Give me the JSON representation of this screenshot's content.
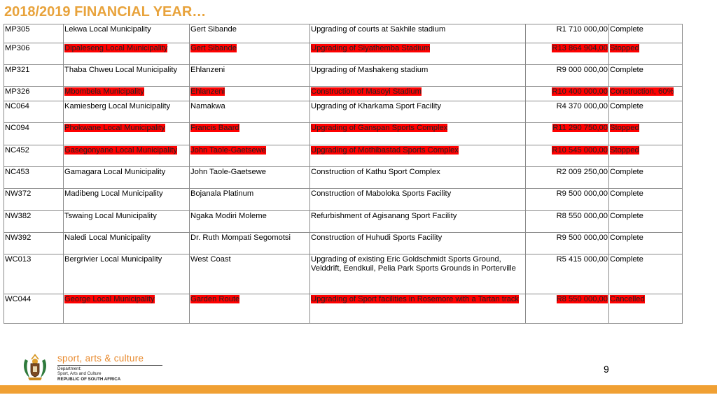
{
  "header": {
    "title": "2018/2019 FINANCIAL YEAR…"
  },
  "table": {
    "rows": [
      {
        "code": "MP305",
        "municipality": "Lekwa Local Municipality",
        "district": "Gert Sibande",
        "project": "Upgrading of courts at Sakhile stadium",
        "amount": "R1 710 000,00",
        "status": "Complete",
        "highlight": false
      },
      {
        "code": "MP306",
        "municipality": "Dipaleseng Local Municipality",
        "district": "Gert Sibande",
        "project": "Upgrading of Siyathemba Stadium",
        "amount": "R13 864 904,00",
        "status": "Stopped",
        "highlight": true
      },
      {
        "code": "MP321",
        "municipality": "Thaba Chweu Local Municipality",
        "district": "Ehlanzeni",
        "project": "Upgrading of Mashakeng stadium",
        "amount": "R9 000 000,00",
        "status": " Complete",
        "highlight": false
      },
      {
        "code": "MP326",
        "municipality": "Mbombela Municipality",
        "district": "Ehlanzeni",
        "project": "Construction of Masoyi Stadium",
        "amount": "R10 400 000,00",
        "status": "Construction, 60%",
        "highlight": true
      },
      {
        "code": "NC064",
        "municipality": "Kamiesberg Local Municipality",
        "district": "Namakwa",
        "project": "Upgrading of Kharkama Sport Facility",
        "amount": "R4 370 000,00",
        "status": "Complete",
        "highlight": false
      },
      {
        "code": "NC094",
        "municipality": "Phokwane Local Municipality",
        "district": "Francis Baard",
        "project": "Upgrading of Ganspan Sports Complex",
        "amount": "R11 290 750,00",
        "status": "Stopped",
        "highlight": true
      },
      {
        "code": "NC452",
        "municipality": "Gasegonyane Local Municipality",
        "district": "John Taole-Gaetsewe",
        "project": "Upgrading of Mothibastad Sports Complex",
        "amount": "R10 545 000,00",
        "status": "Stopped",
        "highlight": true
      },
      {
        "code": "NC453",
        "municipality": "Gamagara Local Municipality",
        "district": "John Taole-Gaetsewe",
        "project": "Construction of Kathu Sport Complex",
        "amount": "R2 009 250,00",
        "status": "Complete",
        "highlight": false
      },
      {
        "code": "NW372",
        "municipality": "Madibeng Local Municipality",
        "district": "Bojanala Platinum",
        "project": "Construction of Maboloka Sports Facility",
        "amount": "R9 500 000,00",
        "status": "Complete",
        "highlight": false
      },
      {
        "code": "NW382",
        "municipality": "Tswaing Local Municipality",
        "district": "Ngaka Modiri Moleme",
        "project": "Refurbishment of Agisanang Sport Facility",
        "amount": "R8 550 000,00",
        "status": "Complete",
        "highlight": false
      },
      {
        "code": "NW392",
        "municipality": "Naledi Local Municipality",
        "district": "Dr. Ruth Mompati Segomotsi",
        "project": "Construction of Huhudi Sports Facility",
        "amount": "R9 500 000,00",
        "status": "Complete",
        "highlight": false
      },
      {
        "code": "WC013",
        "municipality": "Bergrivier Local Municipality",
        "district": "West Coast",
        "project": "Upgrading of existing Eric Goldschmidt Sports Ground, Velddrift, Eendkuil, Pelia Park Sports Grounds in Porterville",
        "amount": "R5 415 000,00",
        "status": "Complete",
        "highlight": false
      },
      {
        "code": "WC044",
        "municipality": "George Local Municipality",
        "district": "Garden Route",
        "project": "Upgrading of Sport facilities in Rosemore with a Tartan track",
        "amount": "R8 550 000,00",
        "status": "Cancelled",
        "highlight": true
      }
    ]
  },
  "footer": {
    "page_number": "9",
    "logo_brand": "sport, arts & culture",
    "logo_dept_1": "Department:",
    "logo_dept_2": "Sport, Arts and Culture",
    "logo_dept_3": "REPUBLIC OF SOUTH AFRICA"
  },
  "colors": {
    "title": "#e8a33c",
    "highlight": "#ff0000",
    "bar": "#f0a033"
  }
}
